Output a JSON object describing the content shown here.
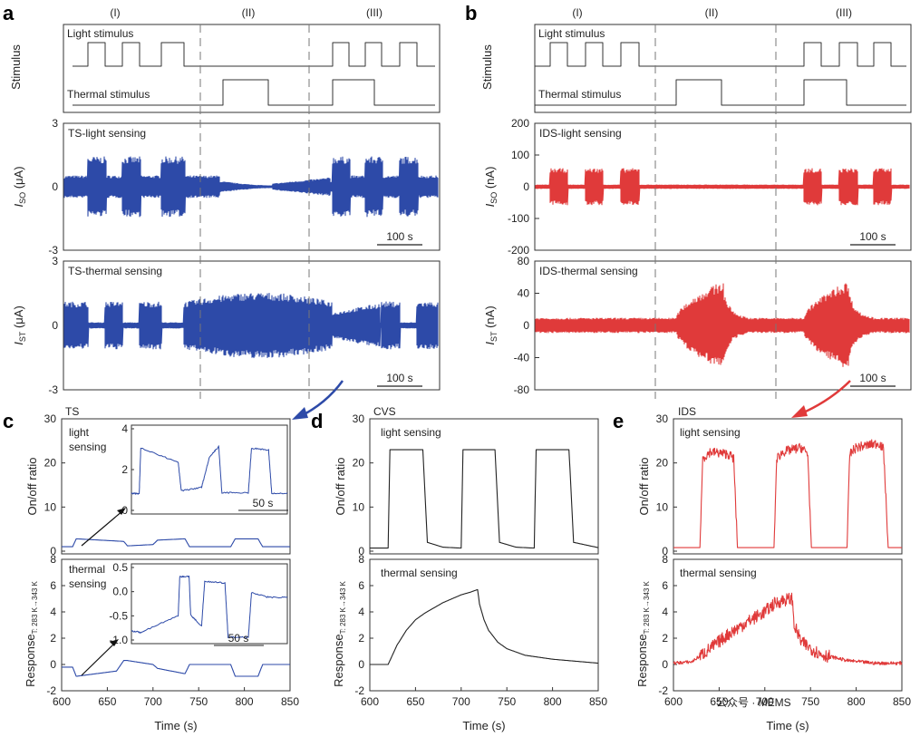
{
  "colors": {
    "ts": "#2d4aa8",
    "ids": "#e03a3a",
    "cvs": "#222222"
  },
  "panel_labels": {
    "a": "a",
    "b": "b",
    "c": "c",
    "d": "d",
    "e": "e"
  },
  "regions": [
    "(I)",
    "(II)",
    "(III)"
  ],
  "stim": {
    "ylabel": "Stimulus",
    "light": "Light stimulus",
    "thermal": "Thermal stimulus"
  },
  "a": {
    "so_title": "TS-light sensing",
    "so_ylabel_main": "I",
    "so_ylabel_sub": "SO",
    "so_ylabel_unit": " (μA)",
    "so_ticks": [
      "3",
      "0",
      "-3"
    ],
    "st_title": "TS-thermal sensing",
    "st_ylabel_main": "I",
    "st_ylabel_sub": "ST",
    "st_ylabel_unit": " (μA)",
    "st_ticks": [
      "3",
      "0",
      "-3"
    ],
    "scalebar": "100 s"
  },
  "b": {
    "so_title": "IDS-light sensing",
    "so_ylabel_main": "I",
    "so_ylabel_sub": "SO",
    "so_ylabel_unit": " (nA)",
    "so_ticks": [
      "200",
      "100",
      "0",
      "-100",
      "-200"
    ],
    "st_title": "IDS-thermal sensing",
    "st_ylabel_main": "I",
    "st_ylabel_sub": "ST",
    "st_ylabel_unit": " (nA)",
    "st_ticks": [
      "80",
      "40",
      "0",
      "-40",
      "-80"
    ],
    "scalebar": "100 s"
  },
  "bottom": {
    "xlabel": "Time (s)",
    "xticks": [
      "600",
      "650",
      "700",
      "750",
      "800",
      "850"
    ],
    "onoff_ylabel": "On/off ratio",
    "onoff_ticks": [
      "30",
      "20",
      "10",
      "0"
    ],
    "resp_ylabel_main": "Response",
    "resp_ylabel_sub": "T: 283 K→343 K",
    "resp_ticks": [
      "8",
      "6",
      "4",
      "2",
      "0",
      "-2"
    ],
    "c_title": "TS",
    "c_light": [
      "light",
      "sensing"
    ],
    "c_thermal": [
      "thermal",
      "sensing"
    ],
    "c_inset1_ticks": [
      "4",
      "2",
      "0"
    ],
    "c_inset2_ticks": [
      "0.5",
      "0.0",
      "-0.5",
      "-1.0"
    ],
    "c_inset_scale": "50 s",
    "d_title": "CVS",
    "d_light": "light sensing",
    "d_thermal": "thermal sensing",
    "e_title": "IDS",
    "e_light": "light sensing",
    "e_thermal": "thermal sensing",
    "watermark": "公众号 · MEMS"
  },
  "chart_data": [
    {
      "type": "line",
      "title": "c: TS light sensing on/off ratio",
      "xlabel": "Time (s)",
      "ylabel": "On/off ratio",
      "xlim": [
        600,
        850
      ],
      "ylim": [
        0,
        30
      ],
      "series": [
        {
          "name": "TS",
          "x": [
            600,
            612,
            616,
            660,
            668,
            672,
            700,
            705,
            735,
            740,
            785,
            790,
            815,
            820,
            850
          ],
          "y": [
            1.0,
            1.0,
            2.8,
            2.3,
            2.2,
            1.2,
            1.5,
            2.5,
            2.8,
            1.0,
            1.0,
            2.8,
            2.8,
            1.0,
            1.0
          ]
        }
      ]
    },
    {
      "type": "line",
      "title": "c: TS thermal sensing response",
      "xlabel": "Time (s)",
      "ylabel": "Response",
      "xlim": [
        600,
        850
      ],
      "ylim": [
        -2,
        8
      ],
      "series": [
        {
          "name": "TS",
          "x": [
            600,
            612,
            616,
            660,
            668,
            672,
            700,
            705,
            735,
            740,
            785,
            790,
            815,
            820,
            850
          ],
          "y": [
            -0.2,
            -0.2,
            -0.9,
            -0.5,
            0.3,
            0.3,
            0.0,
            -0.3,
            -0.7,
            0.0,
            0.0,
            -0.9,
            -0.9,
            0.0,
            0.0
          ]
        }
      ]
    },
    {
      "type": "line",
      "title": "d: CVS light sensing",
      "xlabel": "Time (s)",
      "ylabel": "On/off ratio",
      "xlim": [
        600,
        850
      ],
      "ylim": [
        0,
        30
      ],
      "series": [
        {
          "name": "CVS",
          "x": [
            600,
            620,
            622,
            658,
            663,
            680,
            700,
            702,
            737,
            742,
            760,
            780,
            782,
            818,
            823,
            850
          ],
          "y": [
            0.7,
            0.7,
            23,
            23,
            2,
            0.9,
            0.7,
            23,
            23,
            2,
            0.9,
            0.7,
            23,
            23,
            2,
            0.8
          ]
        }
      ]
    },
    {
      "type": "line",
      "title": "d: CVS thermal sensing",
      "xlabel": "Time (s)",
      "ylabel": "Response",
      "xlim": [
        600,
        850
      ],
      "ylim": [
        -2,
        8
      ],
      "series": [
        {
          "name": "CVS",
          "x": [
            600,
            620,
            630,
            640,
            650,
            660,
            670,
            680,
            690,
            700,
            710,
            718,
            720,
            725,
            730,
            740,
            750,
            770,
            800,
            850
          ],
          "y": [
            0,
            0,
            1.5,
            2.6,
            3.4,
            3.9,
            4.3,
            4.7,
            5.0,
            5.3,
            5.5,
            5.7,
            4.6,
            3.4,
            2.6,
            1.7,
            1.2,
            0.7,
            0.4,
            0.1
          ]
        }
      ]
    },
    {
      "type": "line",
      "title": "e: IDS light sensing",
      "xlabel": "Time (s)",
      "ylabel": "On/off ratio",
      "xlim": [
        600,
        850
      ],
      "ylim": [
        0,
        30
      ],
      "series": [
        {
          "name": "IDS",
          "x": [
            600,
            629,
            632,
            640,
            660,
            666,
            670,
            710,
            713,
            720,
            740,
            747,
            751,
            790,
            793,
            800,
            825,
            830,
            835,
            850
          ],
          "y": [
            0.8,
            0.8,
            21,
            22.5,
            22,
            21,
            0.8,
            0.8,
            21,
            22.5,
            23.5,
            22,
            0.8,
            0.8,
            22,
            23.5,
            24.5,
            23,
            0.8,
            0.8
          ]
        }
      ]
    },
    {
      "type": "line",
      "title": "e: IDS thermal sensing",
      "xlabel": "Time (s)",
      "ylabel": "Response",
      "xlim": [
        600,
        850
      ],
      "ylim": [
        -2,
        8
      ],
      "series": [
        {
          "name": "IDS",
          "x": [
            600,
            620,
            640,
            660,
            680,
            700,
            710,
            720,
            730,
            732,
            740,
            760,
            790,
            820,
            850
          ],
          "y": [
            0.1,
            0.2,
            1.2,
            2.3,
            3.2,
            4.0,
            4.6,
            4.9,
            5.0,
            3.0,
            1.7,
            0.8,
            0.3,
            0.1,
            0.1
          ]
        }
      ]
    }
  ]
}
